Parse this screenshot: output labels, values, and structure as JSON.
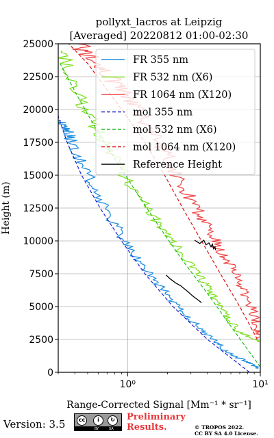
{
  "chart_data": {
    "type": "line",
    "title_line1": "pollyxt_lacros at Leipzig",
    "title_line2": "[Averaged] 20220812 01:00-02:30",
    "xlabel": "Range-Corrected Signal [Mm⁻¹ * sr⁻¹]",
    "ylabel": "Height (m)",
    "x_scale": "log",
    "xlim": [
      0.3,
      10.0
    ],
    "ylim": [
      0,
      25000
    ],
    "x_ticks": [
      {
        "value": 1,
        "label": "10⁰"
      },
      {
        "value": 10,
        "label": "10¹"
      }
    ],
    "y_ticks": [
      {
        "value": 0,
        "label": "0"
      },
      {
        "value": 2500,
        "label": "2500"
      },
      {
        "value": 5000,
        "label": "5000"
      },
      {
        "value": 7500,
        "label": "7500"
      },
      {
        "value": 10000,
        "label": "10000"
      },
      {
        "value": 12500,
        "label": "12500"
      },
      {
        "value": 15000,
        "label": "15000"
      },
      {
        "value": 17500,
        "label": "17500"
      },
      {
        "value": 20000,
        "label": "20000"
      },
      {
        "value": 22500,
        "label": "22500"
      },
      {
        "value": 25000,
        "label": "25000"
      }
    ],
    "grid": true,
    "legend_position": "top-right",
    "series": [
      {
        "name": "FR 355 nm",
        "color": "#1f8fe0",
        "style": "solid",
        "noise": 0.05,
        "x": [
          9.5,
          8.0,
          5.6,
          4.4,
          3.3,
          2.4,
          1.78,
          1.3,
          0.95,
          0.72,
          0.56,
          0.45,
          0.38,
          0.34,
          0.31
        ],
        "y": [
          300,
          800,
          1500,
          2500,
          3600,
          5000,
          6500,
          8000,
          10000,
          12000,
          14000,
          16000,
          17500,
          18500,
          19200
        ]
      },
      {
        "name": "FR 532 nm (X6)",
        "color": "#7fe020",
        "style": "solid",
        "noise": 0.05,
        "x": [
          10.0,
          7.0,
          5.3,
          4.3,
          3.4,
          2.6,
          2.0,
          1.5,
          1.1,
          0.82,
          0.62,
          0.48,
          0.38,
          0.32
        ],
        "y": [
          2300,
          3000,
          4500,
          6000,
          7500,
          9000,
          10500,
          12000,
          14000,
          16000,
          18000,
          20000,
          22500,
          24500
        ]
      },
      {
        "name": "FR 1064 nm (X120)",
        "color": "#f04848",
        "style": "solid",
        "noise": 0.06,
        "x": [
          10.0,
          9.5,
          8.7,
          7.5,
          6.3,
          5.2,
          4.3,
          3.5,
          2.7,
          2.1,
          1.6,
          1.2,
          0.9,
          0.68,
          0.52,
          0.42
        ],
        "y": [
          2500,
          3500,
          4800,
          6200,
          7600,
          9000,
          10500,
          12000,
          14000,
          16000,
          18000,
          20000,
          21500,
          22800,
          24000,
          25000
        ]
      },
      {
        "name": "mol 355 nm",
        "color": "#1f1fd0",
        "style": "dashed",
        "noise": 0,
        "x": [
          8.3,
          4.0,
          2.2,
          1.35,
          0.9,
          0.62,
          0.45,
          0.35,
          0.3
        ],
        "y": [
          0,
          2500,
          5000,
          7500,
          10000,
          12500,
          15000,
          17500,
          19500
        ]
      },
      {
        "name": "mol 532 nm (X6)",
        "color": "#22bb22",
        "style": "dashed",
        "noise": 0,
        "x": [
          10.0,
          6.0,
          4.0,
          2.6,
          1.75,
          1.2,
          0.83,
          0.58,
          0.42,
          0.31
        ],
        "y": [
          400,
          3500,
          6000,
          8500,
          11000,
          13500,
          16000,
          18500,
          21000,
          23500
        ]
      },
      {
        "name": "mol 1064 nm (X120)",
        "color": "#dd1111",
        "style": "dashed",
        "noise": 0,
        "x": [
          9.5,
          7.0,
          5.0,
          3.6,
          2.6,
          1.9,
          1.35,
          0.98,
          0.7,
          0.5,
          0.36
        ],
        "y": [
          2500,
          5000,
          7500,
          10000,
          12500,
          15000,
          17500,
          19500,
          21500,
          23500,
          25000
        ]
      },
      {
        "name": "Reference Height",
        "color": "#000000",
        "style": "solid",
        "noise": 0,
        "x": [
          3.2,
          3.5,
          3.75,
          3.9,
          4.1,
          4.25,
          4.35,
          4.45,
          4.55,
          4.6
        ],
        "y": [
          10050,
          9800,
          10050,
          9700,
          9850,
          9550,
          9750,
          9400,
          9550,
          9300
        ]
      },
      {
        "name": "",
        "color": "#000000",
        "style": "solid",
        "noise": 0,
        "x": [
          1.95,
          2.1,
          2.3,
          2.5,
          2.8,
          3.1,
          3.4,
          3.6
        ],
        "y": [
          7400,
          7100,
          6800,
          6600,
          6200,
          5800,
          5500,
          5300
        ]
      }
    ]
  },
  "footer": {
    "version": "Version: 3.5",
    "cc_icons": [
      "cc-icon",
      "by-icon",
      "sa-icon"
    ],
    "cc_glyph": "cc",
    "by_glyph": "i",
    "sa_glyph": "↻",
    "cc_by": "BY",
    "cc_sa": "SA",
    "preliminary_line1": "Preliminary",
    "preliminary_line2": "Results.",
    "preliminary_color": "#e8363a",
    "copyright_line1": "© TROPOS 2022.",
    "copyright_line2": "CC BY SA 4.0 License."
  }
}
